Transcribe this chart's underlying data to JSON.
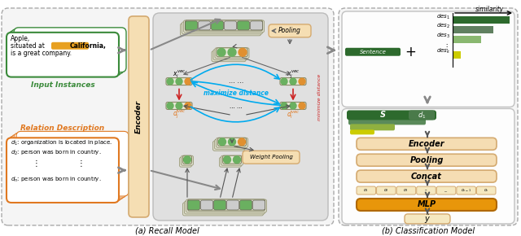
{
  "fig_width": 6.4,
  "fig_height": 2.9,
  "panel_a_title": "(a) Recall Model",
  "panel_b_title": "(b) Classification Model",
  "input_label": "Input Instances",
  "relation_label": "Relation Description",
  "relation_lines": [
    "$d_1$: organization is located in place.",
    "$d_2$: person was born in country.",
    "$d_n$: person was born in country."
  ],
  "similarity_label": "similarity",
  "des_labels": [
    "$des_1$",
    "$des_2$",
    "$des_3$",
    "$des_k$"
  ],
  "sentence_label": "Sentence",
  "clf_boxes": [
    "Encoder",
    "Pooling",
    "Concat",
    "MLP"
  ],
  "output_labels": [
    "$o_1$",
    "$o_2$",
    "$o_3$",
    "---",
    "...",
    "$o_{k-1}$",
    "$o_k$"
  ],
  "color_input_border": "#3a8a3a",
  "color_relation_border": "#e07820",
  "color_encoder_fill": "#f5deb3",
  "color_encoder_border": "#d4aa70",
  "color_clf_box_light": "#f5c87a",
  "color_clf_box_dark": "#e08c20",
  "color_green_dark": "#2d6a2d",
  "color_green_mid": "#5a8a5a",
  "color_green_light": "#8ab870",
  "color_yellow": "#cccc00",
  "color_yellow_light": "#e0e050",
  "max_dist_color": "#00aaee",
  "min_dist_color": "#cc2222",
  "token_green": "#6ab060",
  "token_orange": "#e09030",
  "token_gray": "#aaaaaa"
}
